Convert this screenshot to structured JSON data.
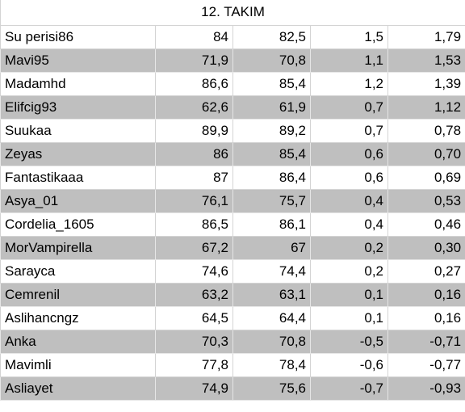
{
  "table": {
    "title": "12. TAKIM",
    "rows": [
      [
        "Su perisi86",
        "84",
        "82,5",
        "1,5",
        "1,79"
      ],
      [
        "Mavi95",
        "71,9",
        "70,8",
        "1,1",
        "1,53"
      ],
      [
        "Madamhd",
        "86,6",
        "85,4",
        "1,2",
        "1,39"
      ],
      [
        "Elifcig93",
        "62,6",
        "61,9",
        "0,7",
        "1,12"
      ],
      [
        "Suukaa",
        "89,9",
        "89,2",
        "0,7",
        "0,78"
      ],
      [
        "Zeyas",
        "86",
        "85,4",
        "0,6",
        "0,70"
      ],
      [
        "Fantastikaaa",
        "87",
        "86,4",
        "0,6",
        "0,69"
      ],
      [
        "Asya_01",
        "76,1",
        "75,7",
        "0,4",
        "0,53"
      ],
      [
        "Cordelia_1605",
        "86,5",
        "86,1",
        "0,4",
        "0,46"
      ],
      [
        "MorVampirella",
        "67,2",
        "67",
        "0,2",
        "0,30"
      ],
      [
        "Sarayca",
        "74,6",
        "74,4",
        "0,2",
        "0,27"
      ],
      [
        "Cemrenil",
        "63,2",
        "63,1",
        "0,1",
        "0,16"
      ],
      [
        "Aslihancngz",
        "64,5",
        "64,4",
        "0,1",
        "0,16"
      ],
      [
        "Anka",
        "70,3",
        "70,8",
        "-0,5",
        "-0,71"
      ],
      [
        "Mavimli",
        "77,8",
        "78,4",
        "-0,6",
        "-0,77"
      ],
      [
        "Asliayet",
        "74,9",
        "75,6",
        "-0,7",
        "-0,93"
      ]
    ]
  }
}
